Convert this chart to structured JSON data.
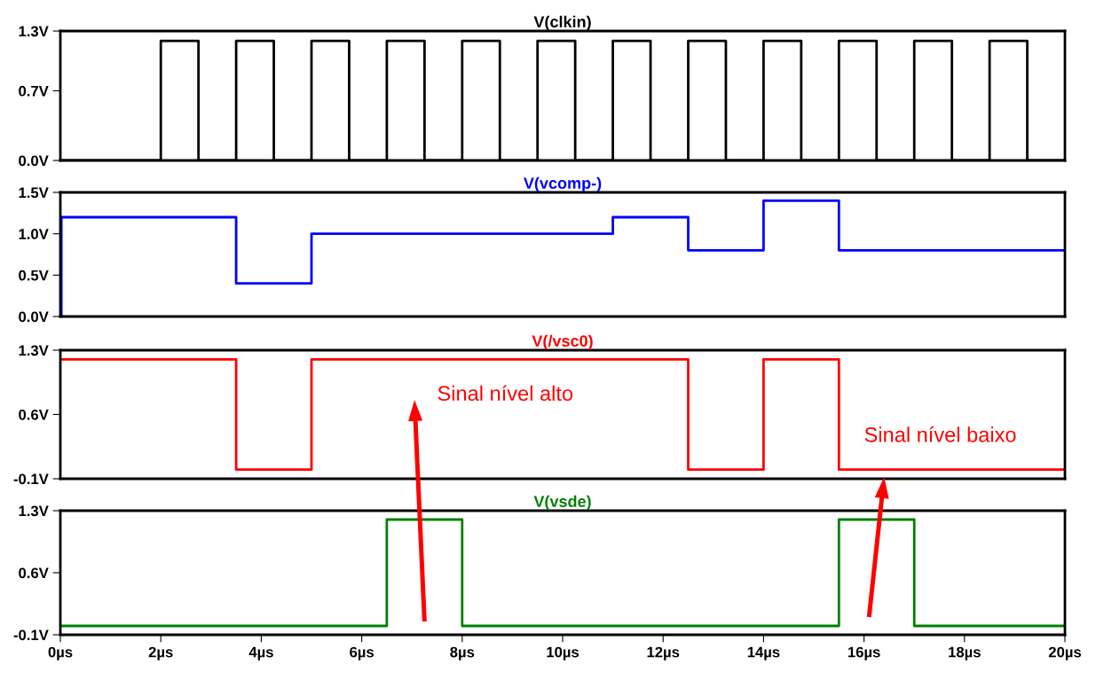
{
  "chart_data": [
    {
      "type": "step",
      "title": "V(clkin)",
      "xlim": [
        0,
        20
      ],
      "ylim": [
        0,
        1.3
      ],
      "yticks": [
        {
          "value": 0,
          "label": "0.0V"
        },
        {
          "value": 0.7,
          "label": "0.7V"
        },
        {
          "value": 1.3,
          "label": "1.3V"
        }
      ],
      "tick_labels": "y",
      "series": [
        {
          "color": "#000000",
          "x": [
            0,
            2,
            2.75,
            3.5,
            4.25,
            5,
            5.75,
            6.5,
            7.25,
            8,
            8.75,
            9.5,
            10.25,
            11,
            11.75,
            12.5,
            13.25,
            14,
            14.75,
            15.5,
            16.25,
            17,
            17.75,
            18.5,
            19.25,
            20
          ],
          "values": [
            0,
            1.2,
            0,
            1.2,
            0,
            1.2,
            0,
            1.2,
            0,
            1.2,
            0,
            1.2,
            0,
            1.2,
            0,
            1.2,
            0,
            1.2,
            0,
            1.2,
            0,
            1.2,
            0,
            1.2,
            0,
            0
          ]
        }
      ]
    },
    {
      "type": "step",
      "title": "V(vcomp-)",
      "xlim": [
        0,
        20
      ],
      "ylim": [
        0,
        1.5
      ],
      "yticks": [
        {
          "value": 0,
          "label": "0.0V"
        },
        {
          "value": 0.5,
          "label": "0.5V"
        },
        {
          "value": 1.0,
          "label": "1.0V"
        },
        {
          "value": 1.5,
          "label": "1.5V"
        }
      ],
      "tick_labels": "y",
      "series": [
        {
          "color": "#0000ff",
          "x": [
            0,
            0.02,
            3.5,
            5,
            11,
            12.5,
            14,
            15.5,
            20
          ],
          "values": [
            0,
            1.2,
            0.4,
            1.0,
            1.2,
            0.8,
            1.4,
            0.8,
            0.8
          ]
        }
      ]
    },
    {
      "type": "step",
      "title": "V(/vsc0)",
      "xlim": [
        0,
        20
      ],
      "ylim": [
        -0.1,
        1.3
      ],
      "yticks": [
        {
          "value": -0.1,
          "label": "-0.1V"
        },
        {
          "value": 0.6,
          "label": "0.6V"
        },
        {
          "value": 1.3,
          "label": "1.3V"
        }
      ],
      "tick_labels": "y",
      "series": [
        {
          "color": "#ff0000",
          "x": [
            0,
            3.5,
            5,
            12.5,
            14,
            15.5,
            20
          ],
          "values": [
            1.2,
            0,
            1.2,
            0,
            1.2,
            0,
            0
          ]
        }
      ],
      "annotations": [
        "Sinal nível alto",
        "Sinal nível baixo"
      ]
    },
    {
      "type": "step",
      "title": "V(vsde)",
      "xlim": [
        0,
        20
      ],
      "xticks": [
        {
          "value": 0,
          "label": "0µs"
        },
        {
          "value": 2,
          "label": "2µs"
        },
        {
          "value": 4,
          "label": "4µs"
        },
        {
          "value": 6,
          "label": "6µs"
        },
        {
          "value": 8,
          "label": "8µs"
        },
        {
          "value": 10,
          "label": "10µs"
        },
        {
          "value": 12,
          "label": "12µs"
        },
        {
          "value": 14,
          "label": "14µs"
        },
        {
          "value": 16,
          "label": "16µs"
        },
        {
          "value": 18,
          "label": "18µs"
        },
        {
          "value": 20,
          "label": "20µs"
        }
      ],
      "ylim": [
        -0.1,
        1.3
      ],
      "yticks": [
        {
          "value": -0.1,
          "label": "-0.1V"
        },
        {
          "value": 0.6,
          "label": "0.6V"
        },
        {
          "value": 1.3,
          "label": "1.3V"
        }
      ],
      "series": [
        {
          "color": "#008000",
          "x": [
            0,
            6.5,
            8,
            15.5,
            17,
            20
          ],
          "values": [
            0,
            1.2,
            0,
            1.2,
            0,
            0
          ]
        }
      ]
    }
  ]
}
